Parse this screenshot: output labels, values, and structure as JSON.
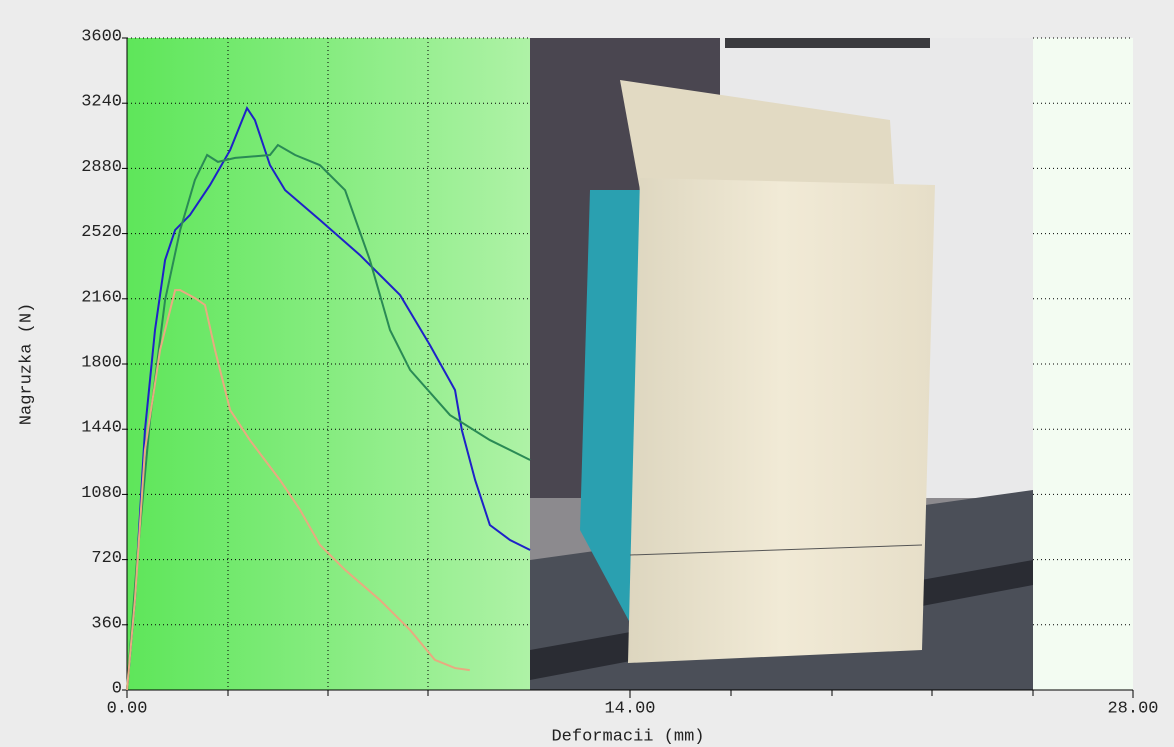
{
  "chart_data": {
    "type": "line",
    "xlabel": "Deformacii (mm)",
    "ylabel": "Nagruzka (N)",
    "xlim": [
      0,
      28
    ],
    "xticks": [
      {
        "value": 0,
        "label": "0.00"
      },
      {
        "value": 14,
        "label": "14.00"
      },
      {
        "value": 28,
        "label": "28.00"
      }
    ],
    "ylim": [
      0,
      3600
    ],
    "yticks": [
      0,
      360,
      720,
      1080,
      1440,
      1800,
      2160,
      2520,
      2880,
      3240,
      3600
    ],
    "grid": true,
    "series": [
      {
        "color": "#1e22c8",
        "x": [
          0,
          0.22,
          0.5,
          0.78,
          1.06,
          1.34,
          1.75,
          2.31,
          2.87,
          3.34,
          3.56,
          3.98,
          4.4,
          5.37,
          6.48,
          7.6,
          8.43,
          9.13,
          9.32,
          9.69,
          10.1,
          10.66,
          11.22
        ],
        "values": [
          0,
          497,
          1435,
          1988,
          2374,
          2540,
          2622,
          2788,
          2981,
          3213,
          3147,
          2898,
          2760,
          2595,
          2402,
          2181,
          1905,
          1656,
          1435,
          1159,
          911,
          828,
          773
        ]
      },
      {
        "color": "#2a8a55",
        "x": [
          0,
          0.28,
          0.64,
          1.06,
          1.48,
          1.89,
          2.23,
          2.53,
          3.01,
          3.98,
          4.2,
          4.68,
          5.37,
          6.07,
          6.76,
          7.32,
          7.88,
          8.99,
          10.1,
          11.22
        ],
        "values": [
          0,
          718,
          1491,
          2153,
          2540,
          2816,
          2954,
          2916,
          2938,
          2954,
          3009,
          2954,
          2898,
          2760,
          2374,
          1988,
          1767,
          1518,
          1380,
          1270
        ]
      },
      {
        "color": "#e8aa80",
        "x": [
          0,
          0.22,
          0.5,
          0.92,
          1.34,
          1.48,
          1.89,
          2.17,
          2.45,
          2.87,
          3.42,
          4.26,
          4.82,
          5.37,
          6.07,
          7.04,
          7.88,
          8.57,
          9.13,
          9.54
        ],
        "values": [
          0,
          497,
          1325,
          1877,
          2208,
          2208,
          2164,
          2126,
          1877,
          1546,
          1380,
          1159,
          994,
          801,
          663,
          497,
          331,
          166,
          121,
          110
        ]
      }
    ]
  }
}
